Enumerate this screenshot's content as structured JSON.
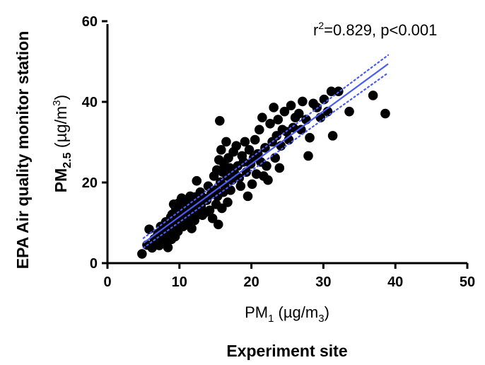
{
  "chart_data": {
    "type": "scatter",
    "stats_label": {
      "r": "r",
      "sup": "2",
      "rest": "=0.829, p<0.001"
    },
    "x_label": {
      "main": "PM",
      "sub": "1",
      "units": " (µg/m",
      "units_sub": "3",
      "close": ")"
    },
    "x_caption": "Experiment site",
    "y_label": {
      "main": "PM",
      "sub": "2.5",
      "units": " (µg/m",
      "units_sup": "3",
      "close": ")"
    },
    "y_caption": "EPA Air quality monitor station",
    "xlim": [
      0,
      50
    ],
    "ylim": [
      0,
      60
    ],
    "x_ticks": [
      "0",
      "10",
      "20",
      "30",
      "40",
      "50"
    ],
    "y_ticks": [
      "0",
      "20",
      "40",
      "60"
    ],
    "fit_line": {
      "x": [
        5,
        39
      ],
      "y": [
        5.0,
        49.4
      ],
      "color": "#4a5bf2",
      "style": "solid"
    },
    "ci_upper": {
      "x": [
        5,
        39
      ],
      "y": [
        6.2,
        51.6
      ],
      "color": "#4a5bf2",
      "style": "dotted"
    },
    "ci_lower": {
      "x": [
        5,
        39
      ],
      "y": [
        3.8,
        47.2
      ],
      "color": "#4a5bf2",
      "style": "dotted"
    },
    "marker_color": "#000000",
    "points": [
      [
        4.8,
        2.3
      ],
      [
        5.5,
        4.5
      ],
      [
        5.8,
        8.4
      ],
      [
        6.2,
        3.8
      ],
      [
        6.5,
        6.0
      ],
      [
        6.8,
        5.2
      ],
      [
        7.0,
        7.3
      ],
      [
        7.2,
        4.4
      ],
      [
        7.4,
        9.1
      ],
      [
        7.6,
        6.4
      ],
      [
        7.8,
        5.6
      ],
      [
        8.0,
        8.2
      ],
      [
        8.1,
        10.2
      ],
      [
        8.3,
        6.8
      ],
      [
        8.4,
        3.9
      ],
      [
        8.6,
        9.6
      ],
      [
        8.7,
        7.6
      ],
      [
        8.8,
        11.4
      ],
      [
        8.9,
        5.9
      ],
      [
        9.0,
        12.1
      ],
      [
        9.1,
        8.8
      ],
      [
        9.2,
        14.6
      ],
      [
        9.3,
        10.6
      ],
      [
        9.4,
        6.6
      ],
      [
        9.5,
        13.6
      ],
      [
        9.6,
        9.2
      ],
      [
        9.7,
        11.9
      ],
      [
        9.8,
        7.9
      ],
      [
        9.9,
        14.9
      ],
      [
        10.0,
        12.4
      ],
      [
        10.1,
        10.2
      ],
      [
        10.2,
        13.3
      ],
      [
        10.3,
        16.1
      ],
      [
        10.4,
        11.1
      ],
      [
        10.5,
        9.1
      ],
      [
        10.6,
        14.1
      ],
      [
        10.7,
        12.2
      ],
      [
        10.8,
        15.6
      ],
      [
        10.9,
        10.9
      ],
      [
        11.0,
        13.5
      ],
      [
        11.1,
        11.6
      ],
      [
        11.2,
        15.1
      ],
      [
        11.3,
        12.9
      ],
      [
        11.4,
        10.1
      ],
      [
        11.5,
        16.6
      ],
      [
        11.6,
        13.9
      ],
      [
        11.7,
        8.6
      ],
      [
        11.8,
        12.6
      ],
      [
        11.9,
        14.6
      ],
      [
        12.0,
        11.6
      ],
      [
        12.1,
        10.6
      ],
      [
        12.2,
        16.4
      ],
      [
        12.3,
        13.6
      ],
      [
        12.4,
        20.4
      ],
      [
        12.5,
        15.1
      ],
      [
        12.7,
        12.1
      ],
      [
        12.9,
        17.6
      ],
      [
        13.0,
        14.1
      ],
      [
        13.2,
        11.9
      ],
      [
        13.4,
        16.1
      ],
      [
        13.6,
        12.6
      ],
      [
        13.8,
        15.6
      ],
      [
        14.0,
        19.1
      ],
      [
        14.2,
        13.1
      ],
      [
        14.4,
        17.1
      ],
      [
        14.6,
        11.1
      ],
      [
        14.8,
        21.6
      ],
      [
        15.0,
        18.1
      ],
      [
        15.1,
        14.6
      ],
      [
        15.2,
        23.1
      ],
      [
        15.3,
        16.6
      ],
      [
        15.4,
        9.6
      ],
      [
        15.5,
        25.6
      ],
      [
        15.6,
        35.3
      ],
      [
        15.7,
        20.1
      ],
      [
        15.8,
        28.1
      ],
      [
        15.9,
        13.6
      ],
      [
        16.0,
        22.6
      ],
      [
        16.1,
        17.6
      ],
      [
        16.2,
        24.6
      ],
      [
        16.3,
        19.1
      ],
      [
        16.5,
        30.1
      ],
      [
        16.6,
        21.6
      ],
      [
        16.7,
        15.1
      ],
      [
        16.8,
        26.1
      ],
      [
        17.0,
        23.6
      ],
      [
        17.1,
        18.1
      ],
      [
        17.3,
        20.6
      ],
      [
        17.5,
        27.6
      ],
      [
        17.7,
        22.1
      ],
      [
        17.9,
        29.1
      ],
      [
        18.1,
        24.1
      ],
      [
        18.3,
        21.1
      ],
      [
        18.5,
        19.1
      ],
      [
        18.7,
        26.6
      ],
      [
        18.9,
        25.1
      ],
      [
        19.1,
        30.1
      ],
      [
        19.3,
        22.6
      ],
      [
        19.5,
        16.6
      ],
      [
        19.7,
        28.1
      ],
      [
        19.9,
        24.6
      ],
      [
        20.1,
        19.6
      ],
      [
        20.3,
        26.1
      ],
      [
        20.5,
        30.6
      ],
      [
        20.7,
        22.1
      ],
      [
        20.9,
        27.1
      ],
      [
        21.1,
        33.1
      ],
      [
        21.3,
        25.1
      ],
      [
        21.5,
        36.1
      ],
      [
        21.7,
        21.6
      ],
      [
        21.9,
        28.6
      ],
      [
        22.1,
        24.1
      ],
      [
        22.3,
        20.6
      ],
      [
        22.6,
        34.6
      ],
      [
        22.9,
        30.1
      ],
      [
        23.1,
        38.6
      ],
      [
        23.3,
        26.1
      ],
      [
        23.5,
        31.6
      ],
      [
        23.7,
        35.6
      ],
      [
        23.9,
        23.6
      ],
      [
        24.1,
        29.1
      ],
      [
        24.3,
        33.1
      ],
      [
        24.6,
        37.6
      ],
      [
        24.9,
        32.6
      ],
      [
        25.2,
        30.6
      ],
      [
        25.5,
        39.1
      ],
      [
        25.8,
        33.6
      ],
      [
        26.1,
        36.1
      ],
      [
        26.6,
        37.1
      ],
      [
        26.9,
        33.1
      ],
      [
        27.1,
        40.1
      ],
      [
        27.6,
        35.6
      ],
      [
        27.9,
        26.6
      ],
      [
        28.1,
        31.1
      ],
      [
        28.6,
        39.6
      ],
      [
        29.1,
        38.6
      ],
      [
        29.6,
        36.1
      ],
      [
        30.1,
        40.6
      ],
      [
        30.6,
        37.6
      ],
      [
        31.1,
        42.6
      ],
      [
        31.3,
        31.6
      ],
      [
        32.1,
        42.6
      ],
      [
        33.6,
        37.6
      ],
      [
        36.9,
        41.6
      ],
      [
        38.6,
        37.1
      ]
    ]
  }
}
